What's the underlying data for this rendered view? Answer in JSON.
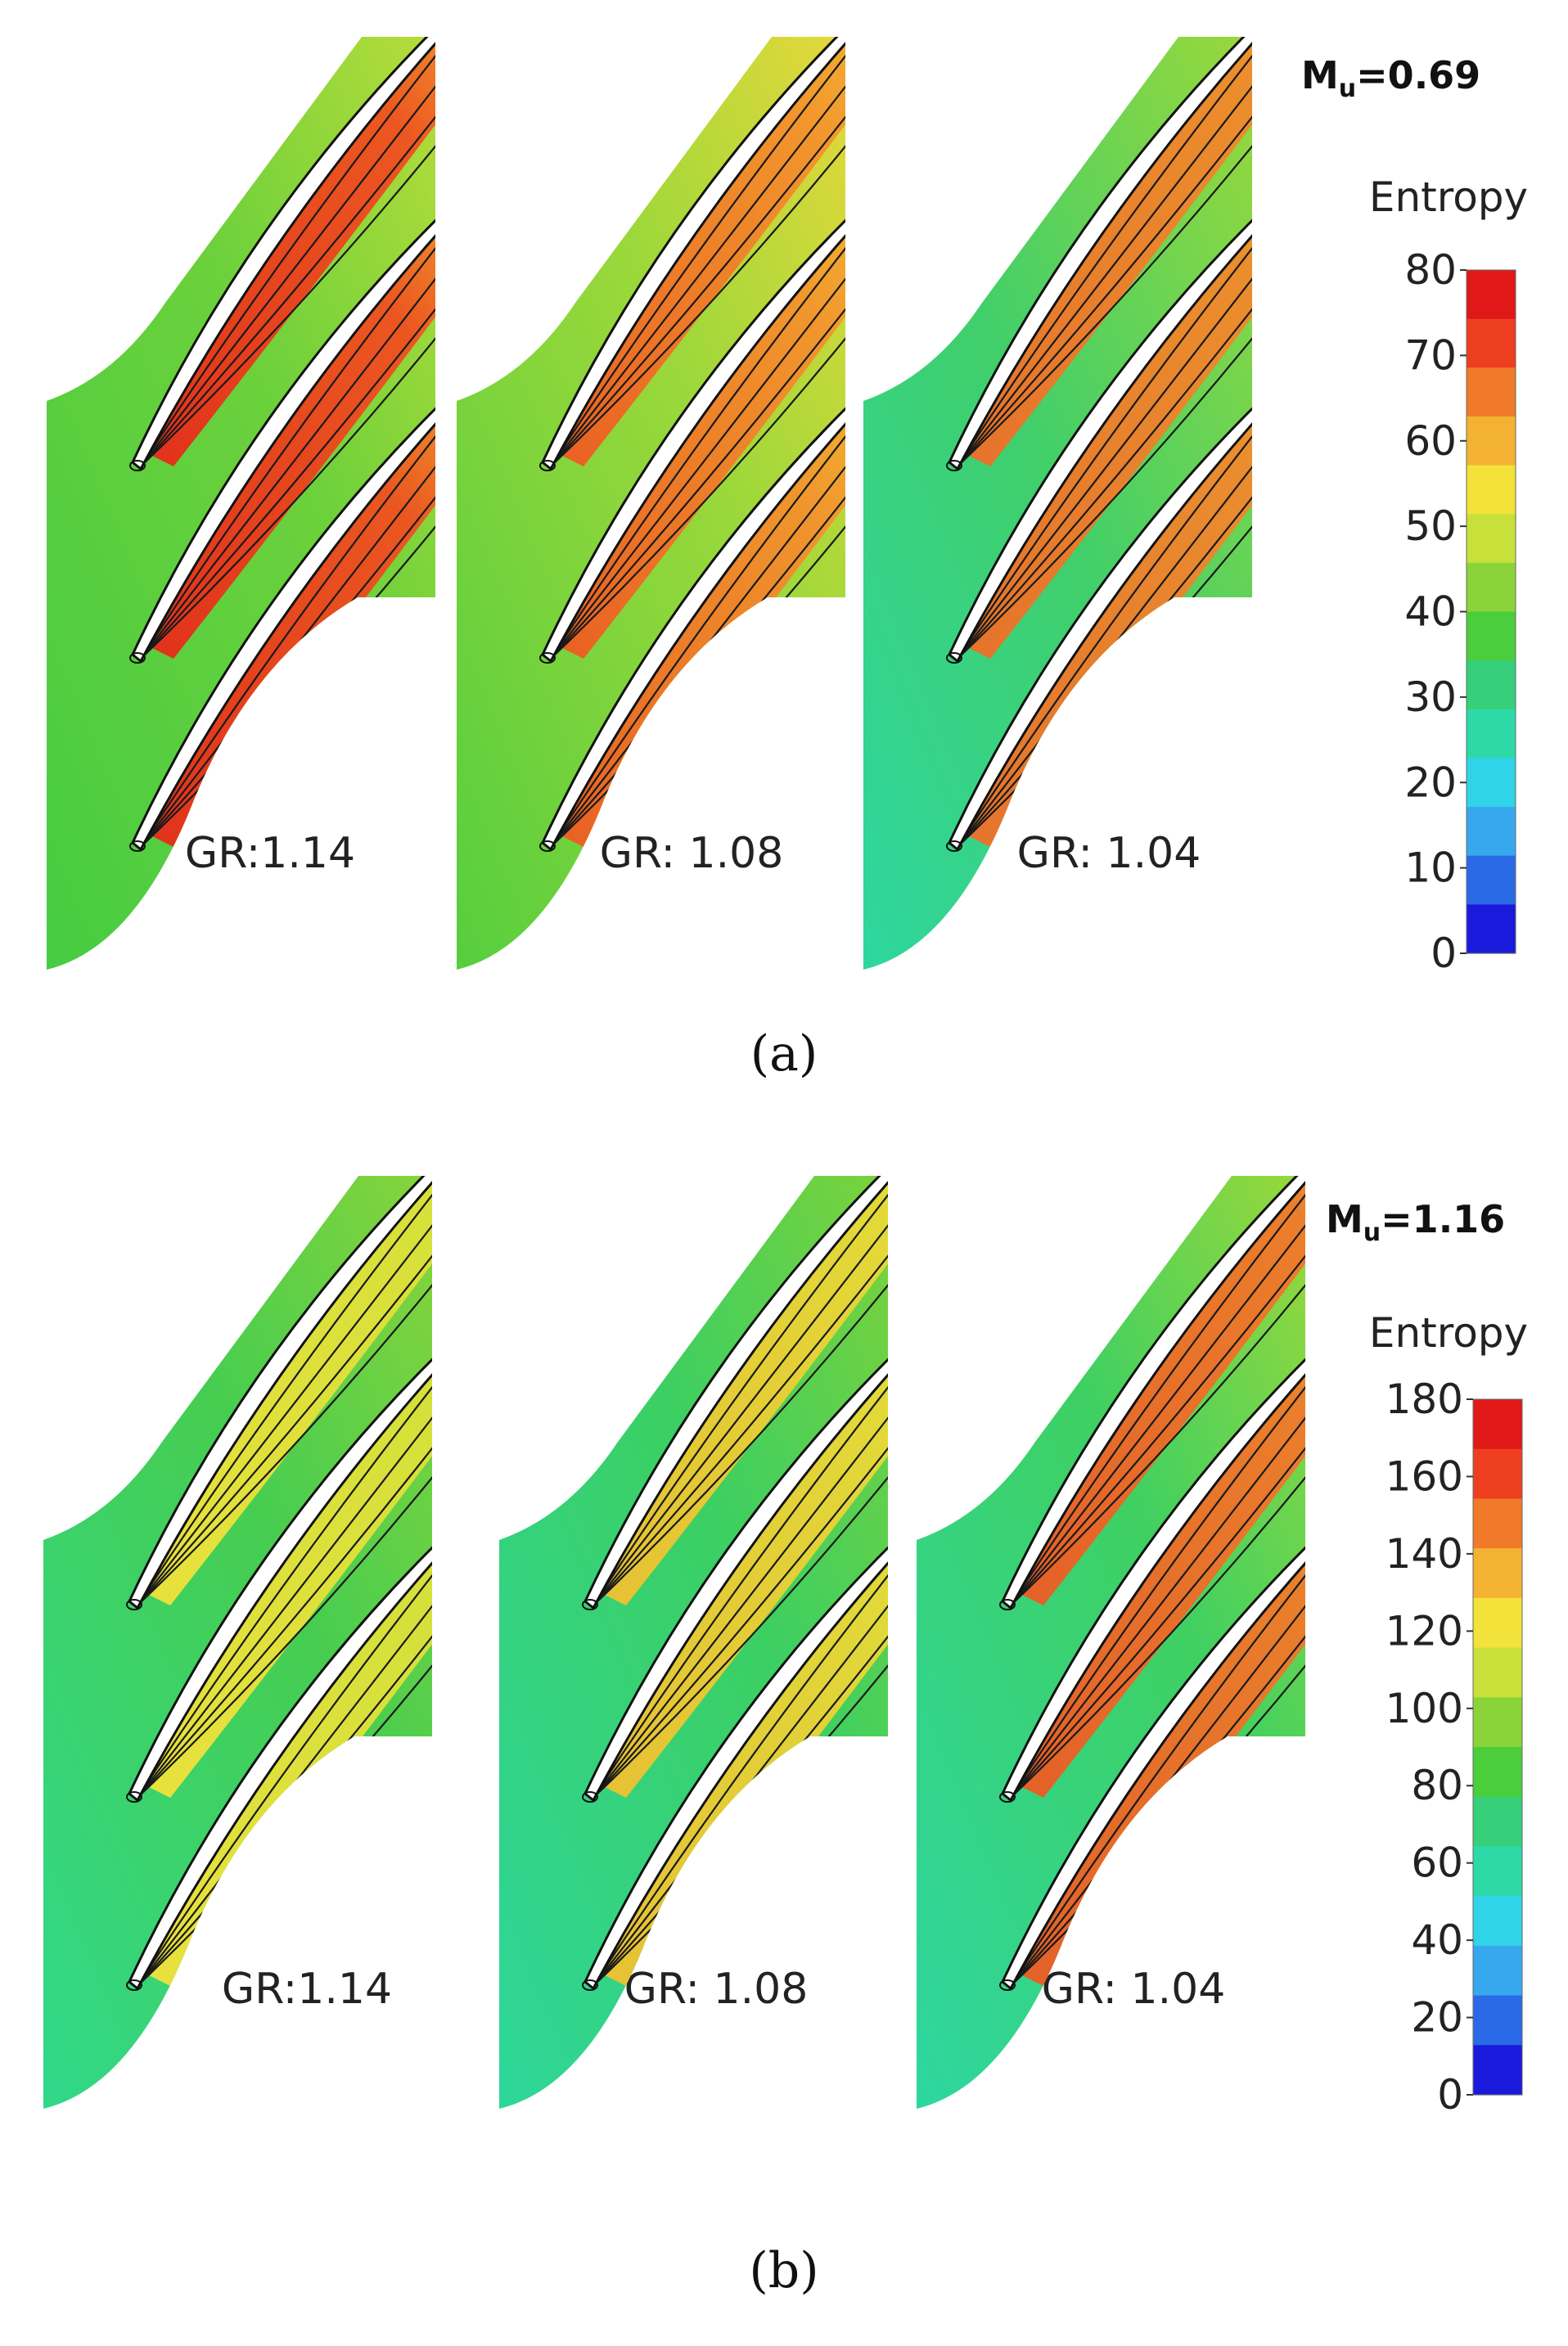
{
  "panels": [
    {
      "caption": "(a)",
      "mach_label": "M",
      "mach_sub": "u",
      "mach_value": "=0.69",
      "colorbar": {
        "title": "Entropy",
        "min": 0,
        "max": 80,
        "ticks": [
          "80",
          "70",
          "60",
          "50",
          "40",
          "30",
          "20",
          "10",
          "0"
        ]
      },
      "cases": [
        {
          "label": "GR:1.14",
          "gr": 1.14
        },
        {
          "label": "GR: 1.08",
          "gr": 1.08
        },
        {
          "label": "GR: 1.04",
          "gr": 1.04
        }
      ]
    },
    {
      "caption": "(b)",
      "mach_label": "M",
      "mach_sub": "u",
      "mach_value": "=1.16",
      "colorbar": {
        "title": "Entropy",
        "min": 0,
        "max": 180,
        "ticks": [
          "180",
          "160",
          "140",
          "120",
          "100",
          "80",
          "60",
          "40",
          "20",
          "0"
        ]
      },
      "cases": [
        {
          "label": "GR:1.14",
          "gr": 1.14
        },
        {
          "label": "GR: 1.08",
          "gr": 1.08
        },
        {
          "label": "GR: 1.04",
          "gr": 1.04
        }
      ]
    }
  ],
  "colormap": [
    "#1a1adc",
    "#2a6ae6",
    "#38a8ee",
    "#30d4e8",
    "#2ed9a8",
    "#36d07a",
    "#4ccd3c",
    "#8ad43a",
    "#c8e03a",
    "#f2e23a",
    "#f4b233",
    "#f07a2a",
    "#ee3e20",
    "#e01818"
  ],
  "colors": {
    "blade": "#ffffff",
    "blade_edge": "#111111",
    "contour": "#1a1a1a"
  }
}
